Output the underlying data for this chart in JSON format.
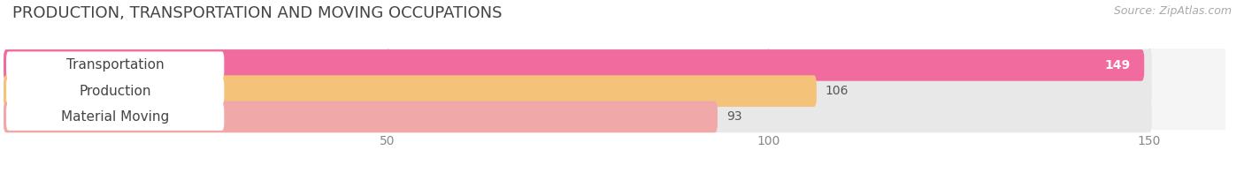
{
  "title": "PRODUCTION, TRANSPORTATION AND MOVING OCCUPATIONS",
  "source": "Source: ZipAtlas.com",
  "categories": [
    "Transportation",
    "Production",
    "Material Moving"
  ],
  "values": [
    149,
    106,
    93
  ],
  "bar_colors": [
    "#f26b9f",
    "#f5c27a",
    "#f0a8a8"
  ],
  "bar_bg_color": "#e8e8e8",
  "value_colors": [
    "#ffffff",
    "#555555",
    "#555555"
  ],
  "xlim_max": 160,
  "display_max": 150,
  "xticks": [
    50,
    100,
    150
  ],
  "page_bg": "#ffffff",
  "axes_bg": "#f5f5f5",
  "title_fontsize": 13,
  "label_fontsize": 11,
  "value_fontsize": 10,
  "tick_fontsize": 10,
  "source_fontsize": 9
}
